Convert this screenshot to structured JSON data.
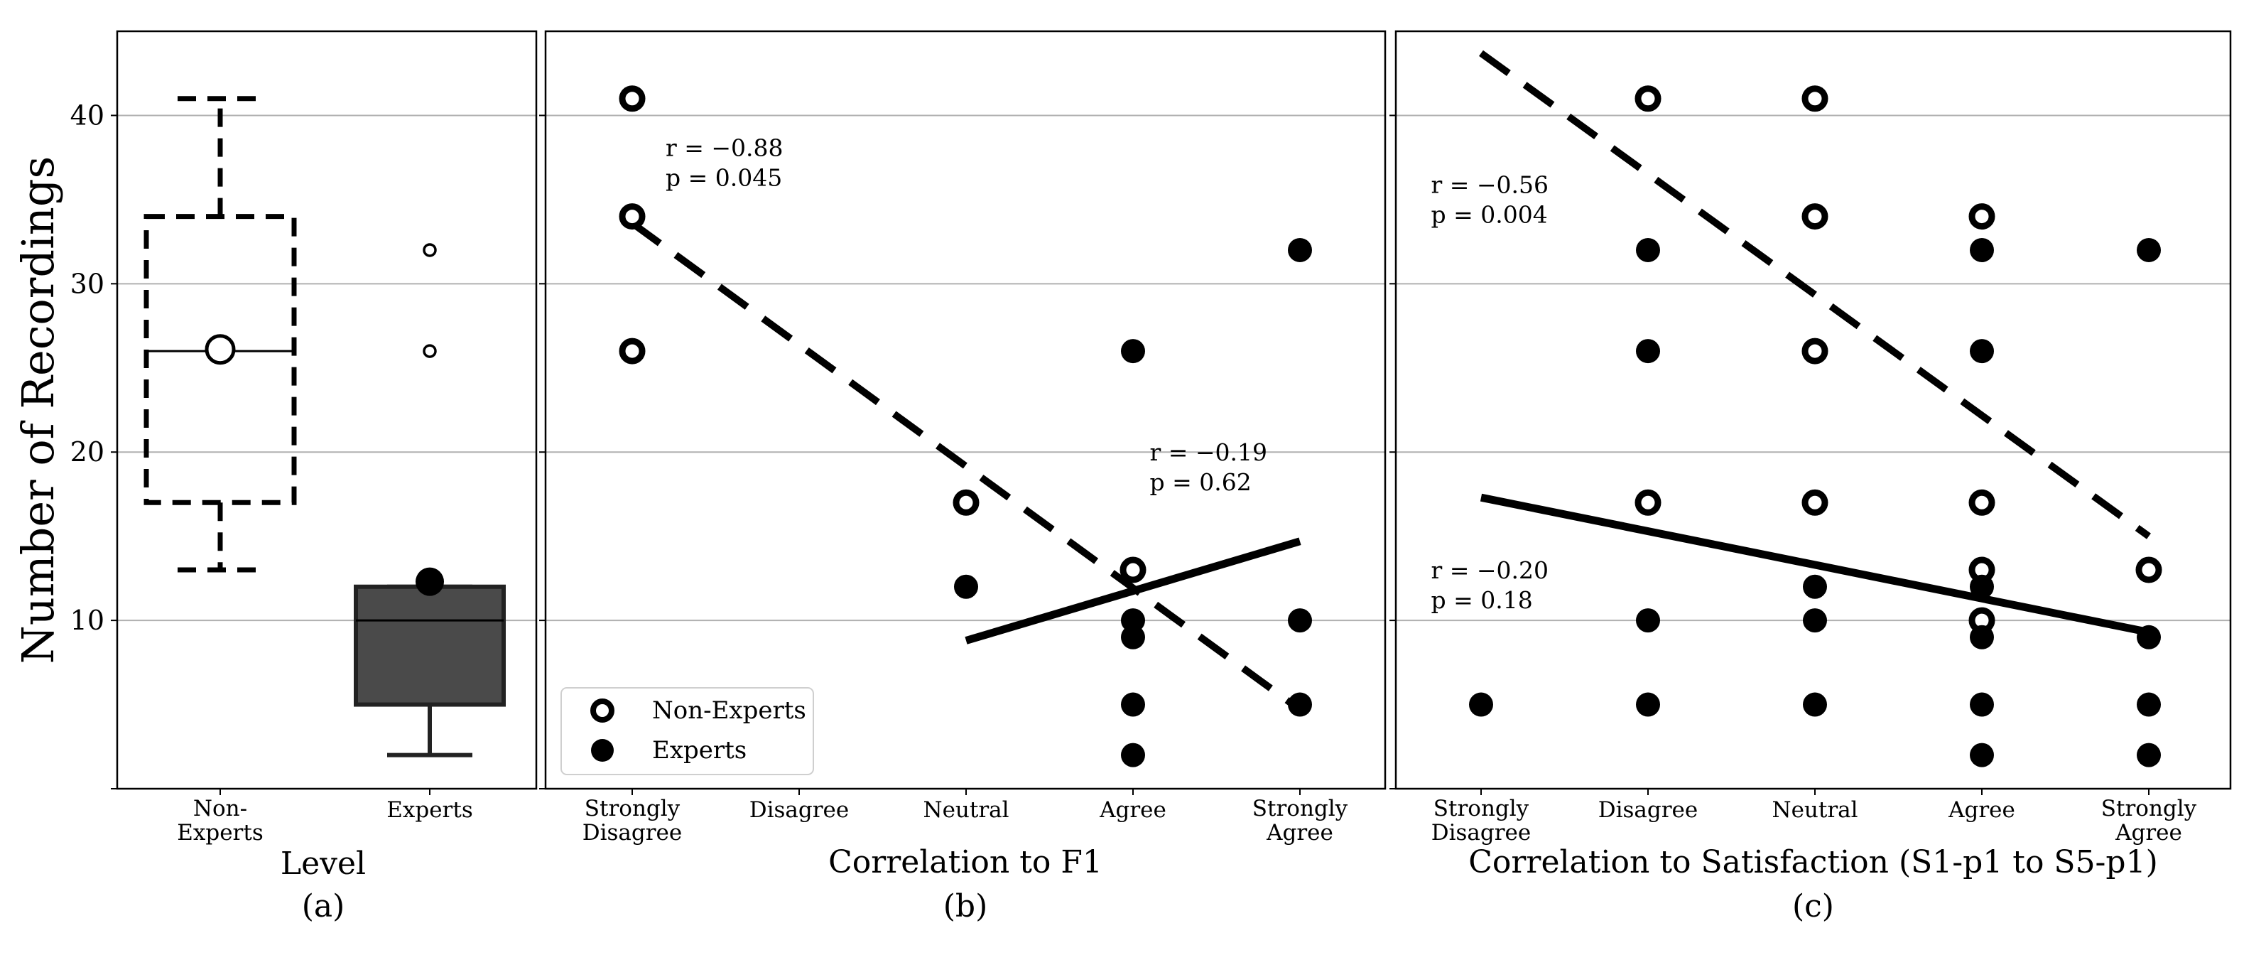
{
  "chart_data": [
    {
      "id": "a",
      "type": "box",
      "panel_label": "(a)",
      "xlabel": "Level",
      "ylabel": "Number of Recordings",
      "ylim": [
        0,
        45
      ],
      "yticks": [
        10,
        20,
        30,
        40
      ],
      "grid": true,
      "categories": [
        "Non-\nExperts",
        "Experts"
      ],
      "boxes": [
        {
          "name": "Non-Experts",
          "whisker_low": 13,
          "q1": 17,
          "median": 26,
          "q3": 34,
          "whisker_high": 41,
          "mean": 26.1,
          "outliers": [],
          "style": "dashed",
          "fill": "none"
        },
        {
          "name": "Experts",
          "whisker_low": 2,
          "q1": 5,
          "median": 10,
          "q3": 12,
          "whisker_high": 12,
          "mean": 12.3,
          "outliers": [
            26,
            32
          ],
          "style": "solid",
          "fill": "#4a4a4a"
        }
      ]
    },
    {
      "id": "b",
      "type": "scatter",
      "panel_label": "(b)",
      "xlabel": "Correlation to F1",
      "ylim": [
        0,
        45
      ],
      "categories": [
        "Strongly\nDisagree",
        "Disagree",
        "Neutral",
        "Agree",
        "Strongly\nAgree"
      ],
      "series": [
        {
          "name": "Non-Experts",
          "marker": "open",
          "points": [
            [
              1,
              41
            ],
            [
              1,
              34
            ],
            [
              1,
              26
            ],
            [
              3,
              17
            ],
            [
              4,
              13
            ]
          ]
        },
        {
          "name": "Experts",
          "marker": "filled",
          "points": [
            [
              3,
              12
            ],
            [
              4,
              26
            ],
            [
              4,
              10
            ],
            [
              4,
              9
            ],
            [
              4,
              5
            ],
            [
              4,
              2
            ],
            [
              5,
              32
            ],
            [
              5,
              10
            ],
            [
              5,
              5
            ]
          ]
        }
      ],
      "fits": [
        {
          "series": "Non-Experts",
          "style": "dashed",
          "x1": 1,
          "y1": 33.6,
          "x2": 5,
          "y2": 4.7
        },
        {
          "series": "Experts",
          "style": "solid",
          "x1": 3,
          "y1": 8.8,
          "x2": 5,
          "y2": 14.7
        }
      ],
      "annotations": [
        {
          "lines": [
            "r = −0.88",
            "p = 0.045"
          ],
          "x": 1.2,
          "y": 37.6
        },
        {
          "lines": [
            "r = −0.19",
            "p = 0.62"
          ],
          "x": 4.1,
          "y": 19.5
        }
      ],
      "legend": {
        "location": "lower-left",
        "entries": [
          "Non-Experts",
          "Experts"
        ]
      }
    },
    {
      "id": "c",
      "type": "scatter",
      "panel_label": "(c)",
      "xlabel": "Correlation to Satisfaction (S1-p1 to S5-p1)",
      "ylim": [
        0,
        45
      ],
      "categories": [
        "Strongly\nDisagree",
        "Disagree",
        "Neutral",
        "Agree",
        "Strongly\nAgree"
      ],
      "series": [
        {
          "name": "Non-Experts",
          "marker": "open",
          "points": [
            [
              2,
              41
            ],
            [
              2,
              17
            ],
            [
              3,
              41
            ],
            [
              3,
              34
            ],
            [
              3,
              26
            ],
            [
              3,
              17
            ],
            [
              4,
              34
            ],
            [
              4,
              17
            ],
            [
              4,
              13
            ],
            [
              4,
              10
            ],
            [
              5,
              13
            ]
          ]
        },
        {
          "name": "Experts",
          "marker": "filled",
          "points": [
            [
              1,
              5
            ],
            [
              2,
              32
            ],
            [
              2,
              26
            ],
            [
              2,
              10
            ],
            [
              2,
              5
            ],
            [
              3,
              12
            ],
            [
              3,
              10
            ],
            [
              3,
              5
            ],
            [
              4,
              32
            ],
            [
              4,
              26
            ],
            [
              4,
              12
            ],
            [
              4,
              9
            ],
            [
              4,
              5
            ],
            [
              4,
              2
            ],
            [
              5,
              32
            ],
            [
              5,
              9
            ],
            [
              5,
              5
            ],
            [
              5,
              2
            ]
          ]
        }
      ],
      "fits": [
        {
          "series": "Non-Experts",
          "style": "dashed",
          "x1": 1,
          "y1": 43.7,
          "x2": 5,
          "y2": 15
        },
        {
          "series": "Experts",
          "style": "solid",
          "x1": 1,
          "y1": 17.3,
          "x2": 5,
          "y2": 9.3
        }
      ],
      "annotations": [
        {
          "lines": [
            "r = −0.56",
            "p = 0.004"
          ],
          "x": 0.7,
          "y": 35.4
        },
        {
          "lines": [
            "r = −0.20",
            "p = 0.18"
          ],
          "x": 0.7,
          "y": 12.5
        }
      ]
    }
  ]
}
